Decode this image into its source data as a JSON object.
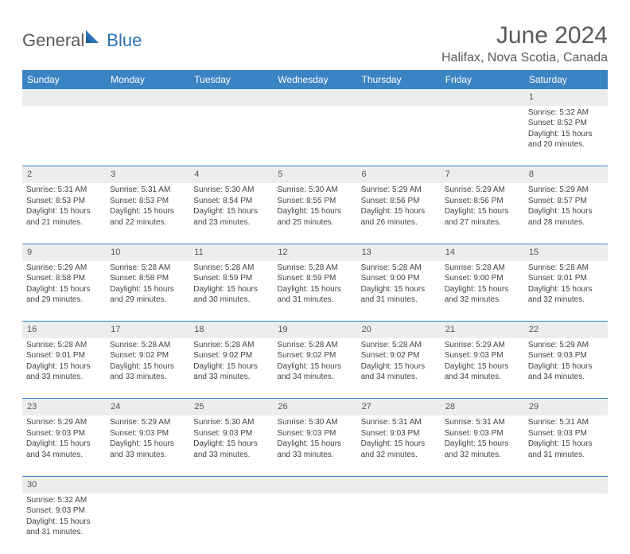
{
  "logo": {
    "general": "General",
    "blue": "Blue"
  },
  "title": "June 2024",
  "location": "Halifax, Nova Scotia, Canada",
  "colors": {
    "header_bg": "#3b84c4",
    "header_text": "#ffffff",
    "daynum_bg": "#eceded",
    "cell_border": "#3b84c4",
    "text": "#444444",
    "title_text": "#5a5a5a"
  },
  "weekdays": [
    "Sunday",
    "Monday",
    "Tuesday",
    "Wednesday",
    "Thursday",
    "Friday",
    "Saturday"
  ],
  "weeks": [
    [
      null,
      null,
      null,
      null,
      null,
      null,
      {
        "n": "1",
        "sr": "5:32 AM",
        "ss": "8:52 PM",
        "dl": "15 hours and 20 minutes."
      }
    ],
    [
      {
        "n": "2",
        "sr": "5:31 AM",
        "ss": "8:53 PM",
        "dl": "15 hours and 21 minutes."
      },
      {
        "n": "3",
        "sr": "5:31 AM",
        "ss": "8:53 PM",
        "dl": "15 hours and 22 minutes."
      },
      {
        "n": "4",
        "sr": "5:30 AM",
        "ss": "8:54 PM",
        "dl": "15 hours and 23 minutes."
      },
      {
        "n": "5",
        "sr": "5:30 AM",
        "ss": "8:55 PM",
        "dl": "15 hours and 25 minutes."
      },
      {
        "n": "6",
        "sr": "5:29 AM",
        "ss": "8:56 PM",
        "dl": "15 hours and 26 minutes."
      },
      {
        "n": "7",
        "sr": "5:29 AM",
        "ss": "8:56 PM",
        "dl": "15 hours and 27 minutes."
      },
      {
        "n": "8",
        "sr": "5:29 AM",
        "ss": "8:57 PM",
        "dl": "15 hours and 28 minutes."
      }
    ],
    [
      {
        "n": "9",
        "sr": "5:29 AM",
        "ss": "8:58 PM",
        "dl": "15 hours and 29 minutes."
      },
      {
        "n": "10",
        "sr": "5:28 AM",
        "ss": "8:58 PM",
        "dl": "15 hours and 29 minutes."
      },
      {
        "n": "11",
        "sr": "5:28 AM",
        "ss": "8:59 PM",
        "dl": "15 hours and 30 minutes."
      },
      {
        "n": "12",
        "sr": "5:28 AM",
        "ss": "8:59 PM",
        "dl": "15 hours and 31 minutes."
      },
      {
        "n": "13",
        "sr": "5:28 AM",
        "ss": "9:00 PM",
        "dl": "15 hours and 31 minutes."
      },
      {
        "n": "14",
        "sr": "5:28 AM",
        "ss": "9:00 PM",
        "dl": "15 hours and 32 minutes."
      },
      {
        "n": "15",
        "sr": "5:28 AM",
        "ss": "9:01 PM",
        "dl": "15 hours and 32 minutes."
      }
    ],
    [
      {
        "n": "16",
        "sr": "5:28 AM",
        "ss": "9:01 PM",
        "dl": "15 hours and 33 minutes."
      },
      {
        "n": "17",
        "sr": "5:28 AM",
        "ss": "9:02 PM",
        "dl": "15 hours and 33 minutes."
      },
      {
        "n": "18",
        "sr": "5:28 AM",
        "ss": "9:02 PM",
        "dl": "15 hours and 33 minutes."
      },
      {
        "n": "19",
        "sr": "5:28 AM",
        "ss": "9:02 PM",
        "dl": "15 hours and 34 minutes."
      },
      {
        "n": "20",
        "sr": "5:28 AM",
        "ss": "9:02 PM",
        "dl": "15 hours and 34 minutes."
      },
      {
        "n": "21",
        "sr": "5:29 AM",
        "ss": "9:03 PM",
        "dl": "15 hours and 34 minutes."
      },
      {
        "n": "22",
        "sr": "5:29 AM",
        "ss": "9:03 PM",
        "dl": "15 hours and 34 minutes."
      }
    ],
    [
      {
        "n": "23",
        "sr": "5:29 AM",
        "ss": "9:03 PM",
        "dl": "15 hours and 34 minutes."
      },
      {
        "n": "24",
        "sr": "5:29 AM",
        "ss": "9:03 PM",
        "dl": "15 hours and 33 minutes."
      },
      {
        "n": "25",
        "sr": "5:30 AM",
        "ss": "9:03 PM",
        "dl": "15 hours and 33 minutes."
      },
      {
        "n": "26",
        "sr": "5:30 AM",
        "ss": "9:03 PM",
        "dl": "15 hours and 33 minutes."
      },
      {
        "n": "27",
        "sr": "5:31 AM",
        "ss": "9:03 PM",
        "dl": "15 hours and 32 minutes."
      },
      {
        "n": "28",
        "sr": "5:31 AM",
        "ss": "9:03 PM",
        "dl": "15 hours and 32 minutes."
      },
      {
        "n": "29",
        "sr": "5:31 AM",
        "ss": "9:03 PM",
        "dl": "15 hours and 31 minutes."
      }
    ],
    [
      {
        "n": "30",
        "sr": "5:32 AM",
        "ss": "9:03 PM",
        "dl": "15 hours and 31 minutes."
      },
      null,
      null,
      null,
      null,
      null,
      null
    ]
  ],
  "labels": {
    "sunrise": "Sunrise: ",
    "sunset": "Sunset: ",
    "daylight": "Daylight: "
  }
}
